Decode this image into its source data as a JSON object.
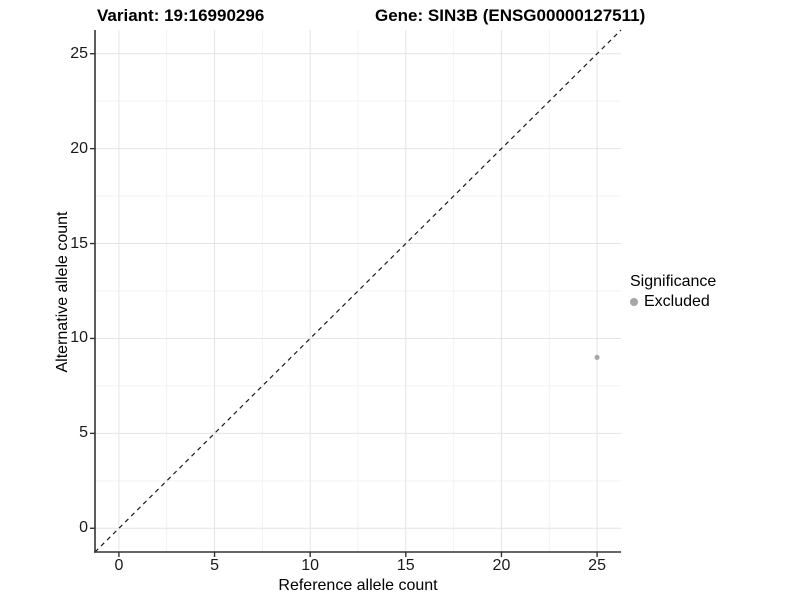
{
  "header": {
    "variant_title": "Variant: 19:16990296",
    "gene_title": "Gene: SIN3B (ENSG00000127511)"
  },
  "axes": {
    "x_label": "Reference allele count",
    "y_label": "Alternative allele count"
  },
  "legend": {
    "title": "Significance",
    "entries": [
      {
        "label": "Excluded",
        "color": "#a6a6a6"
      }
    ]
  },
  "colors": {
    "axis_line": "#333333",
    "major_grid": "#e4e4e4",
    "minor_grid": "#f2f2f2",
    "identity_line": "#1a1a1a",
    "point": "#a6a6a6"
  },
  "chart_data": {
    "type": "scatter",
    "title": "Variant: 19:16990296 — Gene: SIN3B (ENSG00000127511)",
    "xlabel": "Reference allele count",
    "ylabel": "Alternative allele count",
    "xlim": [
      -1.25,
      26.25
    ],
    "ylim": [
      -1.25,
      26.25
    ],
    "x_major_ticks": [
      0,
      5,
      10,
      15,
      20,
      25
    ],
    "y_major_ticks": [
      0,
      5,
      10,
      15,
      20,
      25
    ],
    "x_minor_ticks": [
      2.5,
      7.5,
      12.5,
      17.5,
      22.5
    ],
    "y_minor_ticks": [
      2.5,
      7.5,
      12.5,
      17.5,
      22.5
    ],
    "grid": true,
    "legend_position": "right",
    "identity_line": {
      "shown": true,
      "style": "dashed",
      "from": [
        -1.25,
        -1.25
      ],
      "to": [
        26.25,
        26.25
      ]
    },
    "series": [
      {
        "name": "Excluded",
        "color": "#a6a6a6",
        "points": [
          {
            "x": 25,
            "y": 9
          }
        ]
      }
    ]
  }
}
